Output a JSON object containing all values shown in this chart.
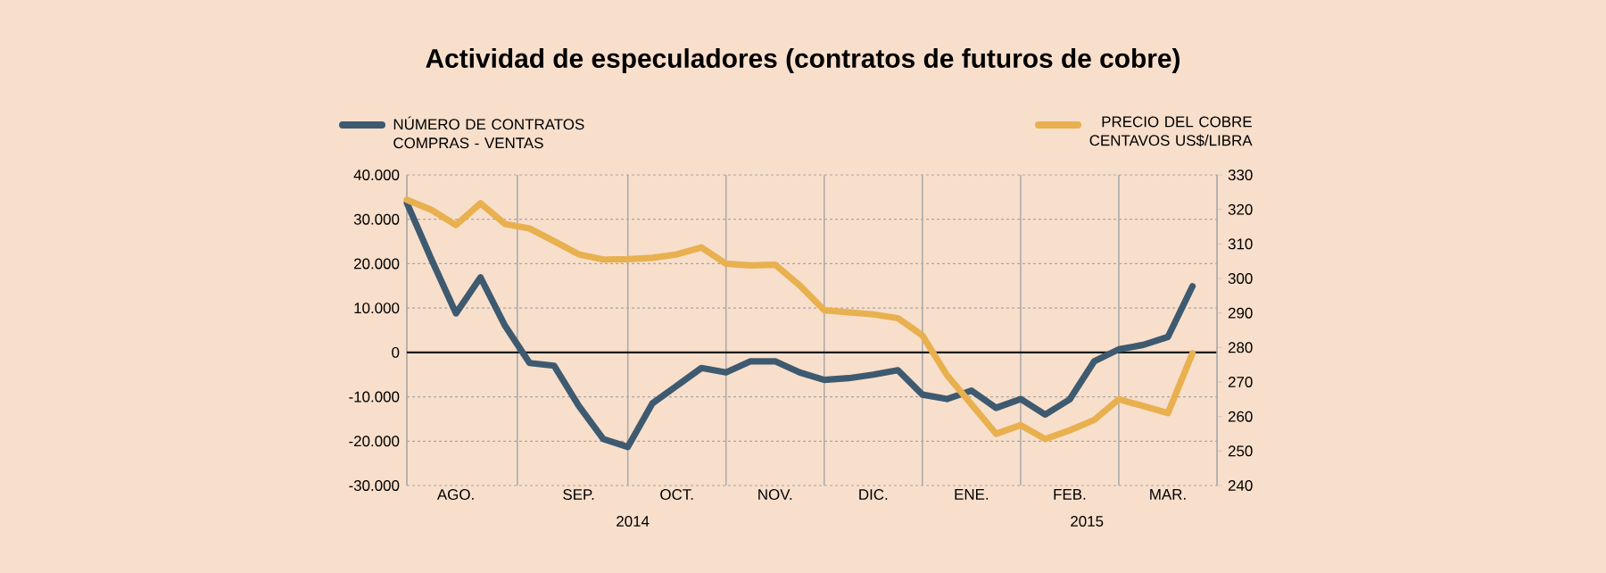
{
  "chart_data": {
    "type": "line",
    "title": "Actividad de especuladores (contratos de futuros de cobre)",
    "categories": [
      null,
      null,
      "AGO.",
      null,
      null,
      null,
      null,
      "SEP.",
      null,
      null,
      null,
      "OCT.",
      null,
      null,
      null,
      "NOV.",
      null,
      null,
      null,
      "DIC.",
      null,
      null,
      null,
      "ENE.",
      null,
      null,
      null,
      "FEB.",
      null,
      null,
      null,
      "MAR.",
      null
    ],
    "ylim": [
      -30000,
      40000
    ],
    "yticks": [
      {
        "value": -30000,
        "label": "-30.000"
      },
      {
        "value": -20000,
        "label": "-20.000"
      },
      {
        "value": -10000,
        "label": "-10.000"
      },
      0,
      {
        "value": 10000,
        "label": "10.000"
      },
      {
        "value": 20000,
        "label": "20.000"
      },
      {
        "value": 30000,
        "label": "30.000"
      },
      {
        "value": 40000,
        "label": "40.000"
      }
    ],
    "y2lim": [
      240,
      330
    ],
    "y2ticks": [
      240,
      250,
      260,
      270,
      280,
      290,
      300,
      310,
      320,
      330
    ],
    "grid": true,
    "legend": "top",
    "marker": "none",
    "line_style": "solid",
    "ref_lines": [
      {
        "axis": "y",
        "value": 0,
        "color": "#1a1a1a"
      }
    ],
    "annotations": [
      "2014",
      "2015"
    ],
    "series": [
      {
        "name": "NÚMERO DE CONTRATOS COMPRAS - VENTAS",
        "color": "#3e5a70",
        "values": [
          33700,
          21000,
          8800,
          16900,
          6000,
          -2400,
          -3000,
          -12000,
          -19500,
          -21300,
          -11500,
          -7500,
          -3500,
          -4500,
          -2000,
          -2000,
          -4500,
          -6200,
          -5800,
          -5000,
          -4000,
          -9500,
          -10500,
          -8600,
          -12500,
          -10500,
          -14000,
          -10600,
          -2000,
          700,
          1700,
          3500,
          14900
        ]
      },
      {
        "name": "PRECIO DEL COBRE CENTAVOS US$/LIBRA",
        "color": "#e8b04f",
        "axis": "y2",
        "values": [
          322.8,
          319.9,
          315.5,
          321.8,
          315.8,
          314.5,
          310.8,
          307,
          305.5,
          305.6,
          306,
          307,
          309,
          304.3,
          303.8,
          304,
          298,
          290.8,
          290.2,
          289.6,
          288.5,
          283.5,
          272,
          263.5,
          255,
          257.5,
          253.5,
          256,
          259,
          265,
          263,
          261,
          278.3
        ]
      }
    ]
  }
}
